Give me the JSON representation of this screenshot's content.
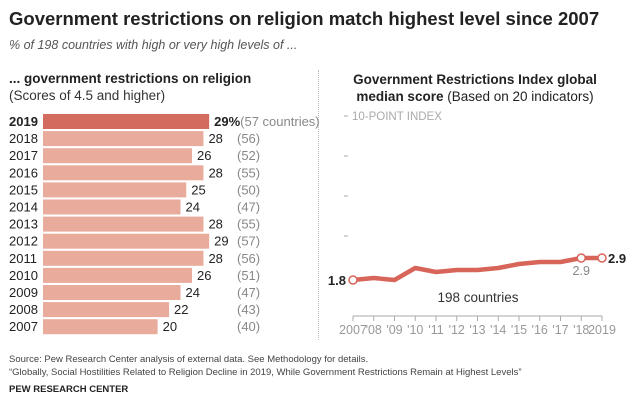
{
  "title": "Government restrictions on religion match highest level since 2007",
  "subtitle": "% of 198 countries with high or very high levels of ...",
  "source": "Source: Pew Research Center analysis of external data. See Methodology for details.",
  "report": "“Globally, Social Hostilities Related to Religion Decline in 2019, While Government Restrictions Remain at Highest Levels”",
  "org": "PEW RESEARCH CENTER",
  "colors": {
    "highlight": "#d46b5f",
    "bar": "#e8ab9c",
    "line": "#d8655a"
  },
  "chart_data": [
    {
      "type": "bar",
      "orientation": "horizontal",
      "title": "... government restrictions on religion",
      "subtitle": "(Scores of 4.5 and higher)",
      "categories": [
        "2019",
        "2018",
        "2017",
        "2016",
        "2015",
        "2014",
        "2013",
        "2012",
        "2011",
        "2010",
        "2009",
        "2008",
        "2007"
      ],
      "values": [
        29,
        28,
        26,
        28,
        25,
        24,
        28,
        29,
        28,
        26,
        24,
        22,
        20
      ],
      "value_labels": [
        "29%",
        "28",
        "26",
        "28",
        "25",
        "24",
        "28",
        "29",
        "28",
        "26",
        "24",
        "22",
        "20"
      ],
      "counts": [
        "(57 countries)",
        "(56)",
        "(52)",
        "(55)",
        "(50)",
        "(47)",
        "(55)",
        "(57)",
        "(56)",
        "(51)",
        "(47)",
        "(43)",
        "(40)"
      ]
    },
    {
      "type": "line",
      "title_bold": "Government Restrictions Index global median score",
      "title_rest": "(Based on 20 indicators)",
      "ytick_label": "10-POINT INDEX",
      "ylim": [
        0,
        10
      ],
      "x": [
        "2007",
        "'08",
        "'09",
        "'10",
        "'11",
        "'12",
        "'13",
        "'14",
        "'15",
        "'16",
        "'17",
        "'18",
        "2019"
      ],
      "y": [
        1.8,
        1.9,
        1.8,
        2.4,
        2.2,
        2.3,
        2.3,
        2.4,
        2.6,
        2.7,
        2.7,
        2.9,
        2.9
      ],
      "labels": {
        "start": "1.8",
        "end": "2.9",
        "prev": "2.9"
      },
      "annotation": "198 countries"
    }
  ]
}
